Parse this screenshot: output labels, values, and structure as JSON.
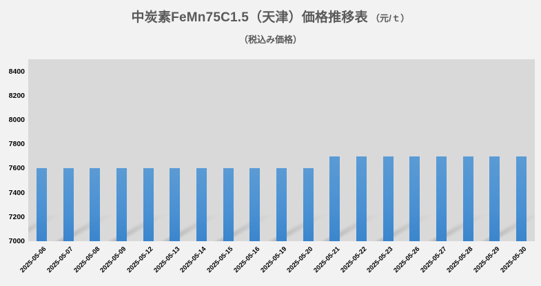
{
  "chart": {
    "title": "中炭素FeMn75C1.5（天津）価格推移表",
    "title_unit": "（元/ｔ）",
    "subtitle": "（税込み価格）"
  },
  "colors": {
    "background": "#f2f2f2",
    "plot_background": "#d9d9d9",
    "bar_top": "#5b9bd5",
    "bar_bottom": "#3a85cd",
    "text": "#595959"
  },
  "chart_data": {
    "type": "bar",
    "title": "中炭素FeMn75C1.5（天津）価格推移表（元/ｔ）",
    "subtitle": "（税込み価格）",
    "xlabel": "",
    "ylabel": "",
    "ylim": [
      7000,
      8500
    ],
    "yticks": [
      7000,
      7200,
      7400,
      7600,
      7800,
      8000,
      8200,
      8400
    ],
    "grid": false,
    "legend": null,
    "categories": [
      "2025-05-06",
      "2025-05-07",
      "2025-05-08",
      "2025-05-09",
      "2025-05-12",
      "2025-05-13",
      "2025-05-14",
      "2025-05-15",
      "2025-05-16",
      "2025-05-19",
      "2025-05-20",
      "2025-05-21",
      "2025-05-22",
      "2025-05-23",
      "2025-05-26",
      "2025-05-27",
      "2025-05-28",
      "2025-05-29",
      "2025-05-30"
    ],
    "values": [
      7600,
      7600,
      7600,
      7600,
      7600,
      7600,
      7600,
      7600,
      7600,
      7600,
      7600,
      7700,
      7700,
      7700,
      7700,
      7700,
      7700,
      7700,
      7700
    ]
  }
}
